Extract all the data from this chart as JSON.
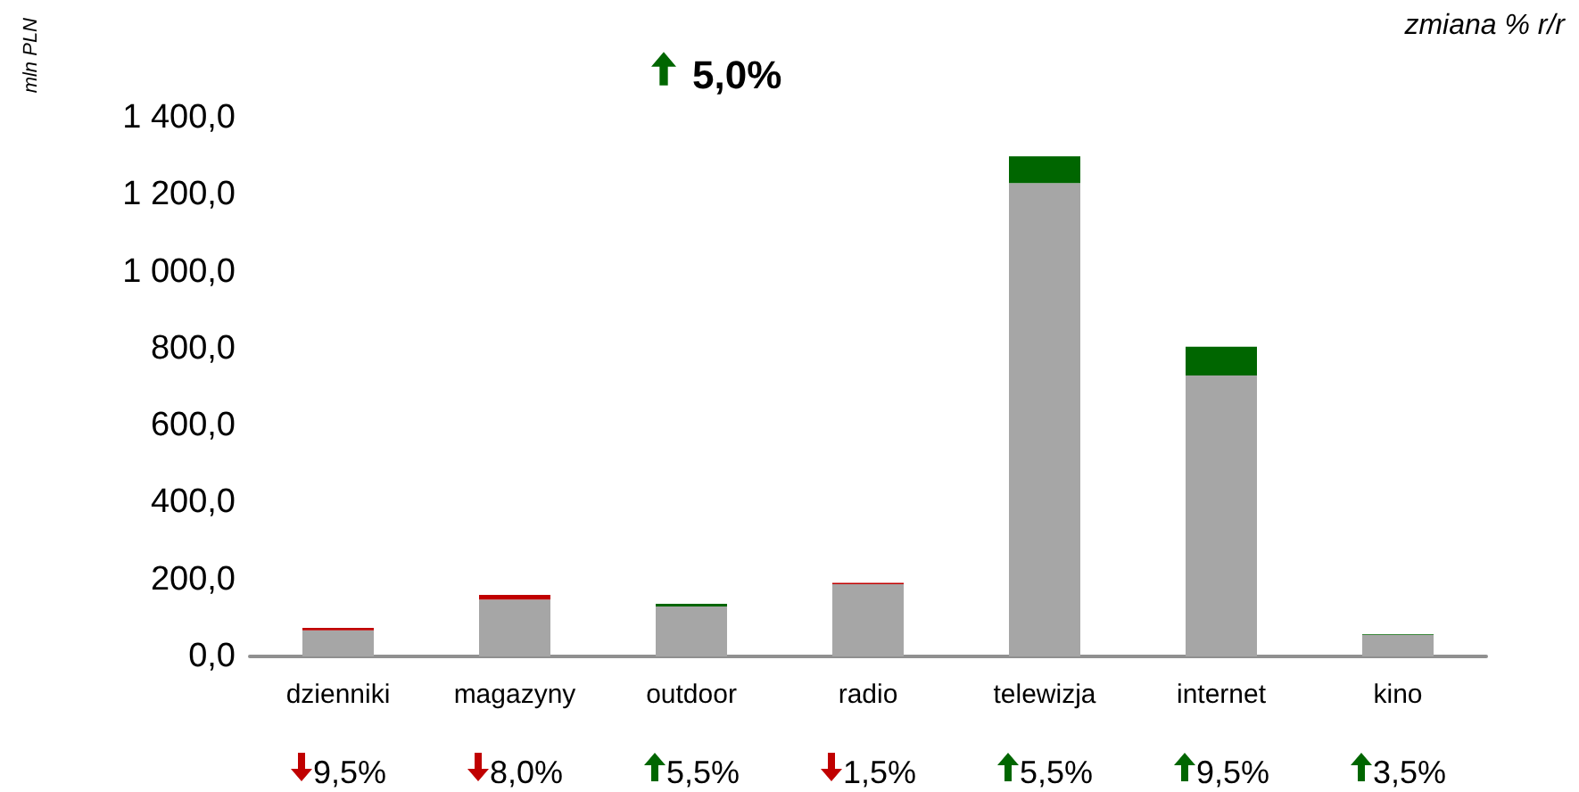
{
  "chart_data": {
    "type": "bar",
    "stacked": true,
    "title": "5,0%",
    "ylabel": "mln PLN",
    "categories": [
      "dzienniki",
      "magazyny",
      "outdoor",
      "radio",
      "telewizja",
      "internet",
      "kino"
    ],
    "series": [
      {
        "color": "#a6a6a6",
        "values": [
          68,
          148,
          130,
          188,
          1230,
          730,
          56
        ]
      },
      {
        "color": "#c00000",
        "values": [
          6,
          12,
          null,
          3,
          null,
          null,
          null
        ]
      },
      {
        "color": "#006600",
        "values": [
          null,
          null,
          7,
          null,
          70,
          75,
          2
        ]
      }
    ],
    "ylim": [
      0,
      1400
    ],
    "yticks": [
      {
        "value": 0,
        "label": "0,0"
      },
      {
        "value": 200,
        "label": "200,0"
      },
      {
        "value": 400,
        "label": "400,0"
      },
      {
        "value": 600,
        "label": "600,0"
      },
      {
        "value": 800,
        "label": "800,0"
      },
      {
        "value": 1000,
        "label": "1 000,0"
      },
      {
        "value": 1200,
        "label": "1 200,0"
      },
      {
        "value": 1400,
        "label": "1 400,0"
      }
    ],
    "grid": false,
    "annotations": [
      "zmiana % r/r",
      "9,5%",
      "8,0%",
      "5,5%",
      "1,5%",
      "5,5%",
      "9,5%",
      "3,5%"
    ]
  }
}
